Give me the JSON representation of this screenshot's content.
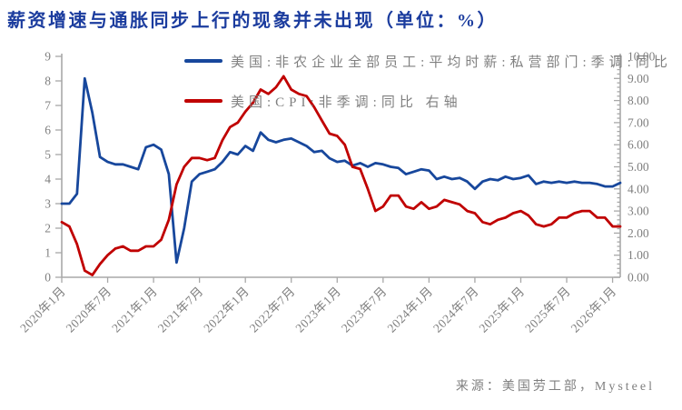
{
  "title": "薪资增速与通胀同步上行的现象并未出现（单位：%）",
  "source": "来源：美国劳工部，Mysteel",
  "legend": [
    {
      "label": "美国:非农企业全部员工:平均时薪:私营部门:季调:同比",
      "color": "#17479c"
    },
    {
      "label": "美国:CPI:非季调:同比  右轴",
      "color": "#c00000"
    }
  ],
  "colors": {
    "title_blue": "#1b3c9e",
    "wage_line_blue": "#17479c",
    "cpi_line_red": "#c00000",
    "axis_gray": "#a8a8a8",
    "label_gray": "#7f7f7f"
  },
  "chart_data": {
    "type": "line",
    "title": "薪资增速与通胀同步上行的现象并未出现（单位：%）",
    "xlabel": "",
    "ylabel": "",
    "grid": false,
    "legend_position": "top-center",
    "x_start": "2020-01",
    "x_end": "2026-02",
    "x_frequency": "monthly",
    "x_tick_labels": [
      "2020年1月",
      "2020年7月",
      "2021年1月",
      "2021年7月",
      "2022年1月",
      "2022年7月",
      "2023年1月",
      "2023年7月",
      "2024年1月",
      "2024年7月",
      "2025年1月",
      "2025年7月",
      "2026年1月"
    ],
    "x_tick_interval_months": 6,
    "left_axis": {
      "min": 0,
      "max": 9,
      "tick_labels": [
        "0",
        "1",
        "2",
        "3",
        "4",
        "5",
        "6",
        "7",
        "8",
        "9"
      ]
    },
    "right_axis": {
      "min": 0,
      "max": 10,
      "tick_labels": [
        "0.00",
        "1.00",
        "2.00",
        "3.00",
        "4.00",
        "5.00",
        "6.00",
        "7.00",
        "8.00",
        "9.00",
        "10.00"
      ]
    },
    "series": [
      {
        "name": "美国:非农企业全部员工:平均时薪:私营部门:季调:同比",
        "axis": "left",
        "color": "#17479c",
        "values": [
          3.0,
          3.0,
          3.4,
          8.1,
          6.7,
          4.9,
          4.7,
          4.6,
          4.6,
          4.5,
          4.4,
          5.3,
          5.4,
          5.2,
          4.2,
          0.6,
          2.0,
          3.9,
          4.2,
          4.3,
          4.4,
          4.7,
          5.1,
          5.0,
          5.35,
          5.15,
          5.9,
          5.6,
          5.5,
          5.6,
          5.65,
          5.5,
          5.35,
          5.1,
          5.15,
          4.85,
          4.7,
          4.75,
          4.55,
          4.65,
          4.5,
          4.65,
          4.6,
          4.5,
          4.45,
          4.2,
          4.3,
          4.4,
          4.35,
          4.0,
          4.1,
          4.0,
          4.05,
          3.9,
          3.6,
          3.9,
          4.0,
          3.95,
          4.1,
          4.0,
          4.05,
          4.15,
          3.8,
          3.9,
          3.85,
          3.9,
          3.85,
          3.9,
          3.85,
          3.85,
          3.8,
          3.7,
          3.7,
          3.85
        ]
      },
      {
        "name": "美国:CPI:非季调:同比",
        "axis": "right",
        "color": "#c00000",
        "values": [
          2.5,
          2.3,
          1.5,
          0.3,
          0.1,
          0.6,
          1.0,
          1.3,
          1.4,
          1.2,
          1.2,
          1.4,
          1.4,
          1.7,
          2.6,
          4.2,
          5.0,
          5.4,
          5.4,
          5.3,
          5.4,
          6.2,
          6.8,
          7.0,
          7.5,
          7.9,
          8.5,
          8.3,
          8.6,
          9.1,
          8.5,
          8.3,
          8.2,
          7.7,
          7.1,
          6.5,
          6.4,
          6.0,
          5.0,
          4.9,
          4.0,
          3.0,
          3.2,
          3.7,
          3.7,
          3.2,
          3.1,
          3.4,
          3.1,
          3.2,
          3.5,
          3.4,
          3.3,
          3.0,
          2.9,
          2.5,
          2.4,
          2.6,
          2.7,
          2.9,
          3.0,
          2.8,
          2.4,
          2.3,
          2.4,
          2.7,
          2.7,
          2.9,
          3.0,
          3.0,
          2.7,
          2.7,
          2.3,
          2.3
        ]
      }
    ]
  }
}
